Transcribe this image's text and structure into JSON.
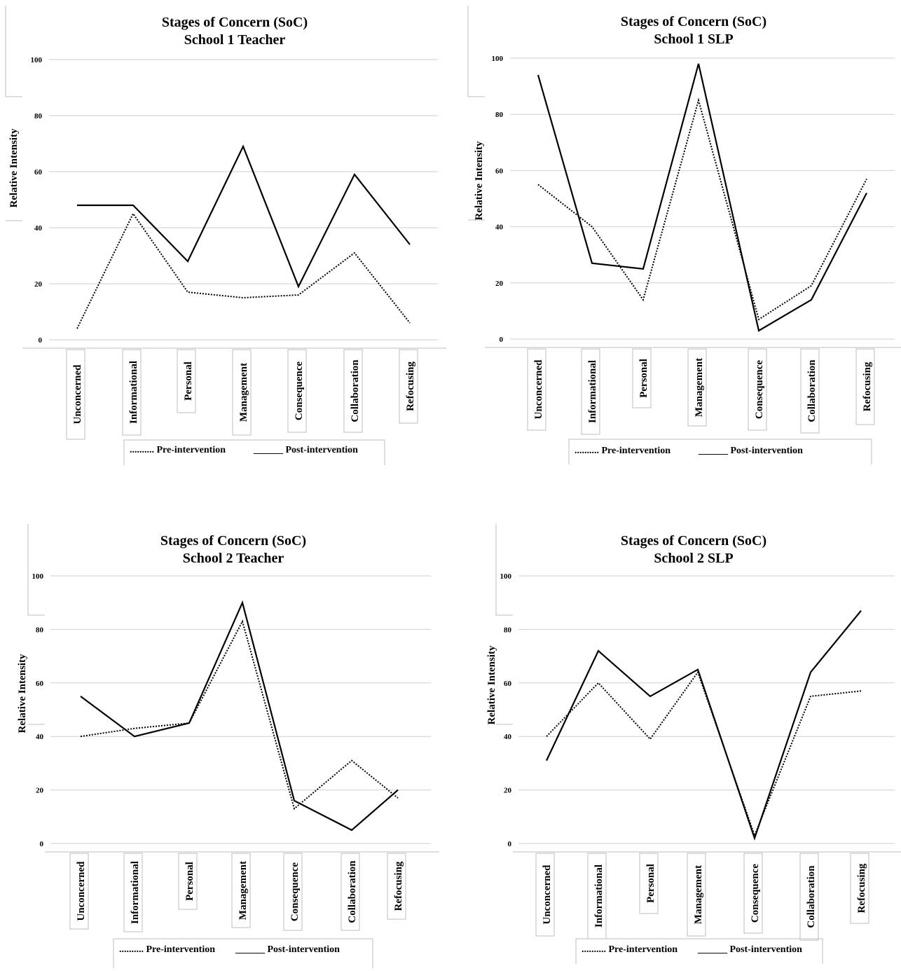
{
  "chart_data": [
    {
      "type": "line",
      "title": "Stages of Concern (SoC)",
      "subtitle": "School 1 Teacher",
      "ylabel": "Relative Intensity",
      "ylim": [
        0,
        100
      ],
      "yticks": [
        0,
        20,
        40,
        60,
        80,
        100
      ],
      "categories": [
        "Unconcerned",
        "Informational",
        "Personal",
        "Management",
        "Consequence",
        "Collaboration",
        "Refocusing"
      ],
      "series": [
        {
          "name": "Pre-intervention",
          "marker": "..........",
          "style": "dotted",
          "values": [
            4,
            45,
            17,
            15,
            16,
            31,
            6
          ]
        },
        {
          "name": "Post-intervention",
          "marker": "______",
          "style": "solid",
          "values": [
            48,
            48,
            28,
            69,
            19,
            59,
            34
          ]
        }
      ]
    },
    {
      "type": "line",
      "title": "Stages of Concern (SoC)",
      "subtitle": "School 1 SLP",
      "ylabel": "Relative Intensity",
      "ylim": [
        0,
        100
      ],
      "yticks": [
        0,
        20,
        40,
        60,
        80,
        100
      ],
      "categories": [
        "Unconcerned",
        "Informational",
        "Personal",
        "Management",
        "Consequence",
        "Collaboration",
        "Refocusing"
      ],
      "series": [
        {
          "name": "Pre-intervention",
          "marker": "..........",
          "style": "dotted",
          "values": [
            55,
            40,
            14,
            85,
            7,
            19,
            57
          ]
        },
        {
          "name": "Post-intervention",
          "marker": "______",
          "style": "solid",
          "values": [
            94,
            27,
            25,
            98,
            3,
            14,
            52
          ]
        }
      ]
    },
    {
      "type": "line",
      "title": "Stages of Concern (SoC)",
      "subtitle": "School 2 Teacher",
      "ylabel": "Relative Intensity",
      "ylim": [
        0,
        100
      ],
      "yticks": [
        0,
        20,
        40,
        60,
        80,
        100
      ],
      "categories": [
        "Unconcerned",
        "Informational",
        "Personal",
        "Management",
        "Consequence",
        "Collaboration",
        "Refocusing"
      ],
      "series": [
        {
          "name": "Pre-intervention",
          "marker": "..........",
          "style": "dotted",
          "values": [
            40,
            43,
            45,
            83,
            13,
            31,
            17
          ]
        },
        {
          "name": "Post-intervention",
          "marker": "______",
          "style": "solid",
          "values": [
            55,
            40,
            45,
            90,
            16,
            5,
            20
          ]
        }
      ]
    },
    {
      "type": "line",
      "title": "Stages of Concern (SoC)",
      "subtitle": "School 2 SLP",
      "ylabel": "Relative Intensity",
      "ylim": [
        0,
        100
      ],
      "yticks": [
        0,
        20,
        40,
        60,
        80,
        100
      ],
      "categories": [
        "Unconcerned",
        "Informational",
        "Personal",
        "Management",
        "Consequence",
        "Collaboration",
        "Refocusing"
      ],
      "series": [
        {
          "name": "Pre-intervention",
          "marker": "..........",
          "style": "dotted",
          "values": [
            40,
            60,
            39,
            64,
            3,
            55,
            57
          ]
        },
        {
          "name": "Post-intervention",
          "marker": "______",
          "style": "solid",
          "values": [
            31,
            72,
            55,
            65,
            2,
            64,
            87
          ]
        }
      ]
    }
  ]
}
